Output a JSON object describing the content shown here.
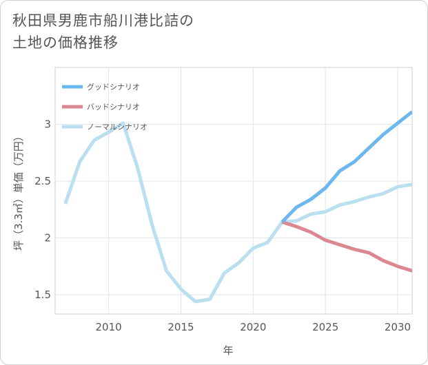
{
  "title_lines": [
    "秋田県男鹿市船川港比詰の",
    "土地の価格推移"
  ],
  "chart_data": {
    "type": "line",
    "xlabel": "年",
    "ylabel": "坪（3.3㎡）単価（万円）",
    "xlim": [
      2006.3,
      2031
    ],
    "ylim": [
      1.33,
      3.5
    ],
    "x_ticks": [
      2010,
      2015,
      2020,
      2025,
      2030
    ],
    "y_ticks": [
      1.5,
      2,
      2.5,
      3
    ],
    "x_tick_labels": [
      "2010",
      "2015",
      "2020",
      "2025",
      "2030"
    ],
    "y_tick_labels": [
      "1.5",
      "2",
      "2.5",
      "3"
    ],
    "grid": true,
    "legend_position": "top-left",
    "series": [
      {
        "name": "グッドシナリオ",
        "color": "#6cb8ee",
        "x": [
          2022,
          2023,
          2024,
          2025,
          2026,
          2027,
          2028,
          2029,
          2030,
          2031
        ],
        "values": [
          2.14,
          2.27,
          2.34,
          2.44,
          2.59,
          2.67,
          2.79,
          2.91,
          3.01,
          3.11
        ]
      },
      {
        "name": "バッドシナリオ",
        "color": "#db8891",
        "x": [
          2022,
          2023,
          2024,
          2025,
          2026,
          2027,
          2028,
          2029,
          2030,
          2031
        ],
        "values": [
          2.14,
          2.1,
          2.05,
          1.98,
          1.94,
          1.9,
          1.87,
          1.8,
          1.75,
          1.71
        ]
      },
      {
        "name": "ノーマルシナリオ",
        "color": "#badfef",
        "x": [
          2007,
          2008,
          2009,
          2010,
          2011,
          2012,
          2013,
          2014,
          2015,
          2016,
          2017,
          2018,
          2019,
          2020,
          2021,
          2022,
          2023,
          2024,
          2025,
          2026,
          2027,
          2028,
          2029,
          2030,
          2031
        ],
        "values": [
          2.3,
          2.67,
          2.86,
          2.93,
          3.01,
          2.62,
          2.12,
          1.71,
          1.55,
          1.44,
          1.46,
          1.69,
          1.78,
          1.91,
          1.96,
          2.14,
          2.15,
          2.21,
          2.23,
          2.29,
          2.32,
          2.36,
          2.39,
          2.45,
          2.47
        ]
      }
    ]
  }
}
